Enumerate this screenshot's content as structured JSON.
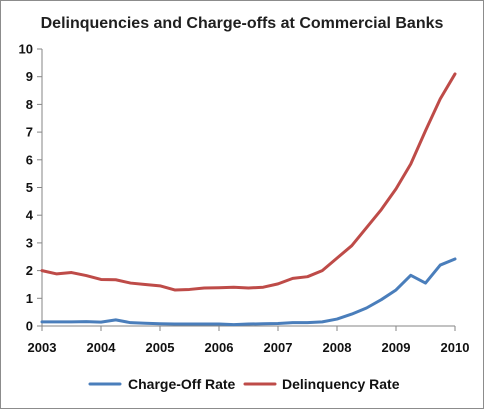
{
  "chart_data": {
    "type": "line",
    "title": "Delinquencies and Charge-offs at Commercial Banks",
    "xlabel": "",
    "ylabel": "",
    "xlim": [
      2003,
      2010
    ],
    "ylim": [
      0,
      10
    ],
    "x_ticks": [
      2003,
      2004,
      2005,
      2006,
      2007,
      2008,
      2009,
      2010
    ],
    "y_ticks": [
      0,
      1,
      2,
      3,
      4,
      5,
      6,
      7,
      8,
      9,
      10
    ],
    "grid": false,
    "legend_position": "bottom",
    "x": [
      2003.0,
      2003.25,
      2003.5,
      2003.75,
      2004.0,
      2004.25,
      2004.5,
      2004.75,
      2005.0,
      2005.25,
      2005.5,
      2005.75,
      2006.0,
      2006.25,
      2006.5,
      2006.75,
      2007.0,
      2007.25,
      2007.5,
      2007.75,
      2008.0,
      2008.25,
      2008.5,
      2008.75,
      2009.0,
      2009.25,
      2009.5,
      2009.75,
      2010.0
    ],
    "series": [
      {
        "name": "Charge-Off Rate",
        "color": "#4a7ebb",
        "values": [
          0.15,
          0.15,
          0.15,
          0.16,
          0.14,
          0.22,
          0.12,
          0.1,
          0.08,
          0.07,
          0.07,
          0.07,
          0.07,
          0.05,
          0.07,
          0.08,
          0.09,
          0.12,
          0.12,
          0.15,
          0.25,
          0.43,
          0.65,
          0.95,
          1.3,
          1.83,
          1.55,
          2.2,
          2.42
        ]
      },
      {
        "name": "Delinquency Rate",
        "color": "#be4b48",
        "values": [
          2.0,
          1.88,
          1.93,
          1.82,
          1.68,
          1.67,
          1.55,
          1.5,
          1.45,
          1.3,
          1.32,
          1.37,
          1.38,
          1.4,
          1.37,
          1.4,
          1.52,
          1.72,
          1.78,
          2.0,
          2.45,
          2.9,
          3.55,
          4.2,
          4.95,
          5.85,
          7.05,
          8.2,
          9.1
        ]
      }
    ]
  }
}
